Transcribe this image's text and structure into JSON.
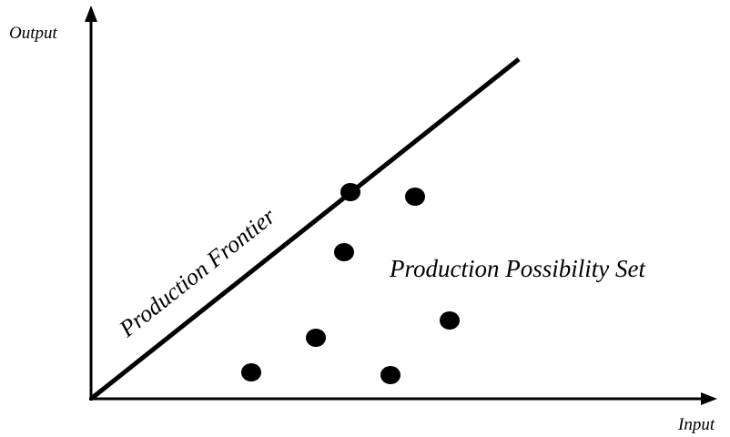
{
  "axes": {
    "y_label": "Output",
    "x_label": "Input"
  },
  "frontier": {
    "label": "Production Frontier"
  },
  "region": {
    "label": "Production Possibility Set"
  }
}
